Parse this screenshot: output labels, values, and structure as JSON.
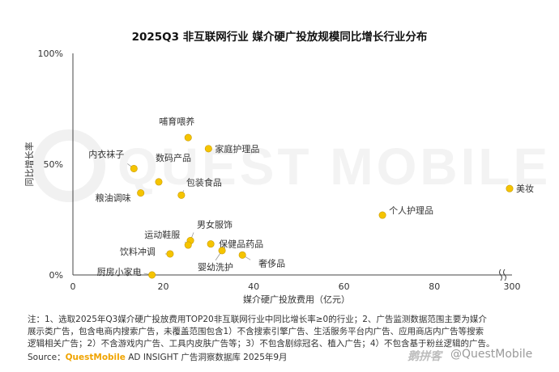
{
  "chart_data": {
    "type": "scatter",
    "title": "2025Q3 非互联网行业 媒介硬广投放规模同比增长行业分布",
    "xlabel": "媒介硬广投放费用（亿元）",
    "ylabel": "同比增长率",
    "x_ticks": [
      "0",
      "20",
      "40",
      "60",
      "80",
      "300"
    ],
    "y_ticks": [
      "0%",
      "50%",
      "100%"
    ],
    "xlim": [
      0,
      300
    ],
    "ylim": [
      0,
      100
    ],
    "x_axis_break": [
      90,
      290
    ],
    "grid": false,
    "marker_color": "#f5c400",
    "points": [
      {
        "label": "哺育喂养",
        "x": 25.5,
        "y": 62
      },
      {
        "label": "家庭护理品",
        "x": 30,
        "y": 57
      },
      {
        "label": "数码产品",
        "x": 19,
        "y": 42
      },
      {
        "label": "内衣袜子",
        "x": 13.5,
        "y": 48
      },
      {
        "label": "包装食品",
        "x": 24,
        "y": 36
      },
      {
        "label": "粮油调味",
        "x": 15,
        "y": 37
      },
      {
        "label": "美妆",
        "x": 294,
        "y": 39
      },
      {
        "label": "个人护理品",
        "x": 68.5,
        "y": 27
      },
      {
        "label": "男女服饰",
        "x": 26,
        "y": 15.5
      },
      {
        "label": "运动鞋服",
        "x": 25.5,
        "y": 13.5
      },
      {
        "label": "饮料冲调",
        "x": 21.5,
        "y": 9.5
      },
      {
        "label": "保健品药品",
        "x": 30.5,
        "y": 14
      },
      {
        "label": "婴幼洗护",
        "x": 33,
        "y": 11
      },
      {
        "label": "奢侈品",
        "x": 37.5,
        "y": 9
      },
      {
        "label": "厨房小家电",
        "x": 17.5,
        "y": 0
      }
    ]
  },
  "footnotes": {
    "line1": "注：1、选取2025年Q3媒介硬广投放费用TOP20非互联网行业中同比增长率≥0的行业；2、广告监测数据范围主要为媒介",
    "line2": "展示类广告，包含电商内搜索广告，未覆盖范围包含1）不含搜索引擎广告、生活服务平台内广告、应用商店内广告等搜索",
    "line3": "逻辑相关广告；2）不含游戏内广告、工具内皮肤广告等；3）不包含剧综冠名、植入广告；4）不包含基于粉丝逻辑的广告。"
  },
  "source": {
    "prefix": "Source：",
    "brand": "QuestMobile",
    "rest": " AD INSIGHT 广告洞察数据库 2025年9月"
  },
  "watermarks": {
    "background_text": "QUEST MOBILE",
    "logo_text": "鹅拼客",
    "handle": "@QuestMobile"
  }
}
